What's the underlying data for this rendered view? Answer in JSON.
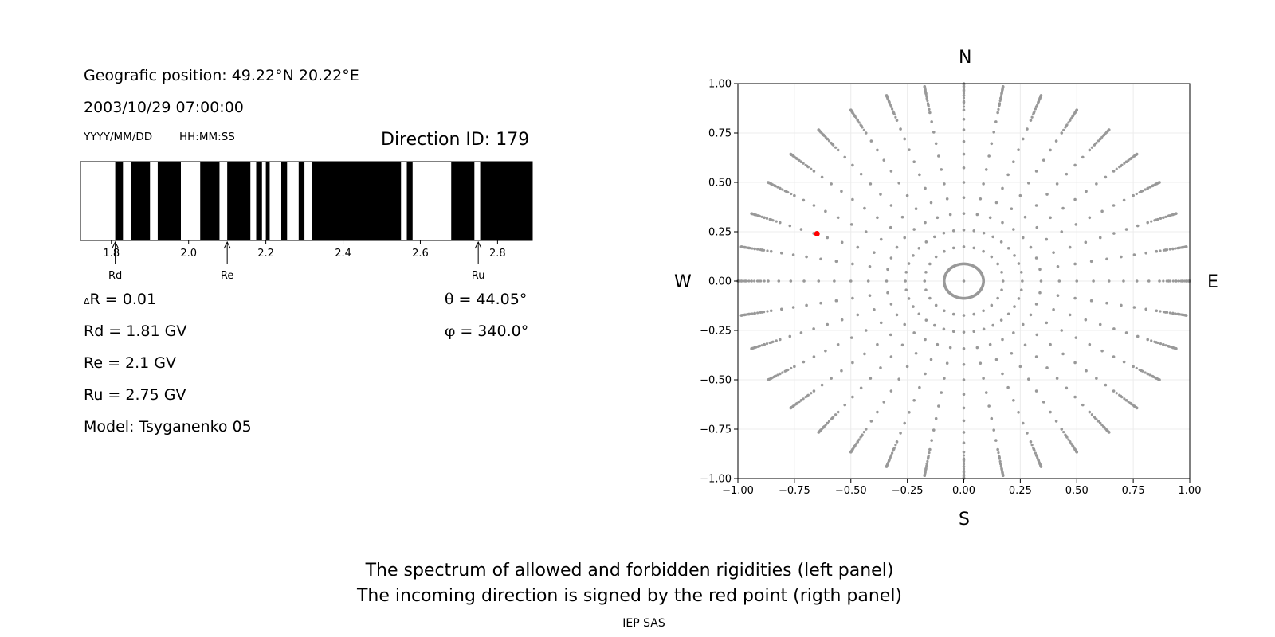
{
  "left": {
    "geo_position": "Geografic position: 49.22°N 20.22°E",
    "datetime": "2003/10/29 07:00:00",
    "date_format": "YYYY/MM/DD",
    "time_format": "HH:MM:SS",
    "direction_id": "Direction ID: 179",
    "delta_r_symbol": "Δ",
    "delta_r": "R = 0.01",
    "rd": "Rd = 1.81 GV",
    "re": "Re = 2.1 GV",
    "ru": "Ru = 2.75 GV",
    "model": "Model: Tsyganenko 05",
    "theta_symbol": "θ",
    "theta": " = 44.05°",
    "phi_symbol": "φ",
    "phi": " = 340.0°"
  },
  "right": {
    "north": "N",
    "south": "S",
    "west": "W",
    "east": "E"
  },
  "footer": {
    "caption_line1": "The spectrum of allowed and forbidden rigidities (left panel)",
    "caption_line2": "The incoming direction is signed by the red point (rigth panel)",
    "credit": "IEP SAS"
  },
  "colors": {
    "grid_points": "#999999",
    "direction_point": "#ff0000",
    "forbidden": "#000000",
    "allowed": "#ffffff"
  },
  "chart_data": [
    {
      "type": "bar",
      "subtype": "rigidity-spectrum",
      "xlim": [
        1.72,
        2.89
      ],
      "xticks": [
        1.8,
        2.0,
        2.2,
        2.4,
        2.6,
        2.8
      ],
      "allowed_intervals": [
        [
          1.72,
          1.81
        ],
        [
          1.83,
          1.85
        ],
        [
          1.9,
          1.92
        ],
        [
          1.98,
          2.03
        ],
        [
          2.08,
          2.1
        ],
        [
          2.16,
          2.175
        ],
        [
          2.19,
          2.2
        ],
        [
          2.21,
          2.24
        ],
        [
          2.255,
          2.285
        ],
        [
          2.3,
          2.32
        ],
        [
          2.55,
          2.565
        ],
        [
          2.58,
          2.68
        ],
        [
          2.74,
          2.755
        ]
      ],
      "markers": [
        {
          "label": "Rd",
          "value": 1.81
        },
        {
          "label": "Re",
          "value": 2.1
        },
        {
          "label": "Ru",
          "value": 2.75
        }
      ]
    },
    {
      "type": "scatter",
      "subtype": "direction-map",
      "xlim": [
        -1,
        1
      ],
      "ylim": [
        -1,
        1
      ],
      "ticks": [
        -1.0,
        -0.75,
        -0.5,
        -0.25,
        0.0,
        0.25,
        0.5,
        0.75,
        1.0
      ],
      "tick_labels": [
        "−1.00",
        "−0.75",
        "−0.50",
        "−0.25",
        "0.00",
        "0.25",
        "0.50",
        "0.75",
        "1.00"
      ],
      "grid": true,
      "direction_pattern": {
        "rays_every_deg": 10,
        "zenith_step_deg": 5,
        "zenith_max_deg": 90,
        "projection": "r = sin(zenith)",
        "first_ring_every_deg": 15
      },
      "highlight_point": {
        "x": -0.65,
        "y": 0.24
      }
    }
  ]
}
